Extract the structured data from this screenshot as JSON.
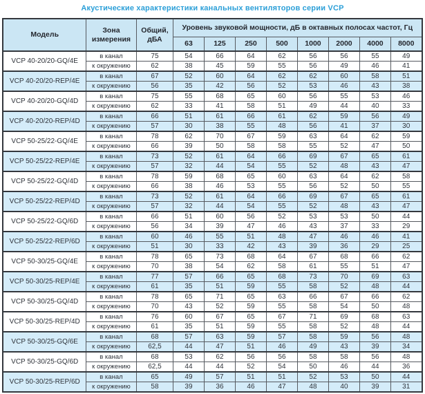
{
  "title": "Акустические характеристики канальных вентиляторов серии VCP",
  "table": {
    "headers": {
      "model": "Модель",
      "zone": "Зона измерения",
      "total": "Общий, дБА",
      "spl": "Уровень звуковой мощности, дБ в октавных полосах частот, Гц",
      "frequencies": [
        "63",
        "125",
        "250",
        "500",
        "1000",
        "2000",
        "4000",
        "8000"
      ]
    },
    "groups": [
      {
        "model": "VCP 40-20/20-GQ/4E",
        "shaded": false,
        "rows": [
          {
            "zone": "в канал",
            "total": "75",
            "levels": [
              "54",
              "66",
              "64",
              "62",
              "56",
              "56",
              "55",
              "49"
            ]
          },
          {
            "zone": "к окружению",
            "total": "62",
            "levels": [
              "38",
              "45",
              "59",
              "55",
              "56",
              "49",
              "46",
              "41"
            ]
          }
        ]
      },
      {
        "model": "VCP 40-20/20-REP/4E",
        "shaded": true,
        "rows": [
          {
            "zone": "в канал",
            "total": "67",
            "levels": [
              "52",
              "60",
              "64",
              "62",
              "62",
              "60",
              "58",
              "51"
            ]
          },
          {
            "zone": "к окружению",
            "total": "56",
            "levels": [
              "35",
              "42",
              "56",
              "52",
              "53",
              "46",
              "43",
              "38"
            ]
          }
        ]
      },
      {
        "model": "VCP 40-20/20-GQ/4D",
        "shaded": false,
        "rows": [
          {
            "zone": "в канал",
            "total": "75",
            "levels": [
              "55",
              "68",
              "65",
              "60",
              "56",
              "55",
              "53",
              "46"
            ]
          },
          {
            "zone": "к окружению",
            "total": "62",
            "levels": [
              "33",
              "41",
              "58",
              "51",
              "49",
              "44",
              "40",
              "33"
            ]
          }
        ]
      },
      {
        "model": "VCP 40-20/20-REP/4D",
        "shaded": true,
        "rows": [
          {
            "zone": "в канал",
            "total": "66",
            "levels": [
              "51",
              "61",
              "66",
              "61",
              "62",
              "59",
              "56",
              "49"
            ]
          },
          {
            "zone": "к окружению",
            "total": "57",
            "levels": [
              "30",
              "38",
              "55",
              "48",
              "56",
              "41",
              "37",
              "30"
            ]
          }
        ]
      },
      {
        "model": "VCP 50-25/22-GQ/4E",
        "shaded": false,
        "rows": [
          {
            "zone": "в канал",
            "total": "78",
            "levels": [
              "62",
              "70",
              "67",
              "59",
              "63",
              "64",
              "62",
              "59"
            ]
          },
          {
            "zone": "к окружению",
            "total": "66",
            "levels": [
              "39",
              "50",
              "58",
              "58",
              "55",
              "52",
              "47",
              "50"
            ]
          }
        ]
      },
      {
        "model": "VCP 50-25/22-REP/4E",
        "shaded": true,
        "rows": [
          {
            "zone": "в канал",
            "total": "73",
            "levels": [
              "52",
              "61",
              "64",
              "66",
              "69",
              "67",
              "65",
              "61"
            ]
          },
          {
            "zone": "к окружению",
            "total": "57",
            "levels": [
              "32",
              "44",
              "54",
              "55",
              "52",
              "48",
              "43",
              "47"
            ]
          }
        ]
      },
      {
        "model": "VCP 50-25/22-GQ/4D",
        "shaded": false,
        "rows": [
          {
            "zone": "в канал",
            "total": "78",
            "levels": [
              "59",
              "68",
              "65",
              "60",
              "63",
              "64",
              "62",
              "58"
            ]
          },
          {
            "zone": "к окружению",
            "total": "66",
            "levels": [
              "38",
              "46",
              "53",
              "55",
              "56",
              "52",
              "50",
              "55"
            ]
          }
        ]
      },
      {
        "model": "VCP 50-25/22-REP/4D",
        "shaded": true,
        "rows": [
          {
            "zone": "в канал",
            "total": "73",
            "levels": [
              "52",
              "61",
              "64",
              "66",
              "69",
              "67",
              "65",
              "61"
            ]
          },
          {
            "zone": "к окружению",
            "total": "57",
            "levels": [
              "32",
              "44",
              "54",
              "55",
              "52",
              "48",
              "43",
              "47"
            ]
          }
        ]
      },
      {
        "model": "VCP 50-25/22-GQ/6D",
        "shaded": false,
        "rows": [
          {
            "zone": "в канал",
            "total": "66",
            "levels": [
              "51",
              "60",
              "56",
              "52",
              "53",
              "53",
              "50",
              "44"
            ]
          },
          {
            "zone": "к окружению",
            "total": "56",
            "levels": [
              "34",
              "39",
              "47",
              "46",
              "43",
              "37",
              "33",
              "29"
            ]
          }
        ]
      },
      {
        "model": "VCP 50-25/22-REP/6D",
        "shaded": true,
        "rows": [
          {
            "zone": "в канал",
            "total": "60",
            "levels": [
              "46",
              "55",
              "51",
              "48",
              "47",
              "46",
              "46",
              "41"
            ]
          },
          {
            "zone": "к окружению",
            "total": "51",
            "levels": [
              "30",
              "33",
              "42",
              "43",
              "39",
              "36",
              "29",
              "25"
            ]
          }
        ]
      },
      {
        "model": "VCP 50-30/25-GQ/4E",
        "shaded": false,
        "rows": [
          {
            "zone": "в канал",
            "total": "78",
            "levels": [
              "65",
              "73",
              "68",
              "64",
              "67",
              "68",
              "66",
              "62"
            ]
          },
          {
            "zone": "к окружению",
            "total": "70",
            "levels": [
              "38",
              "54",
              "62",
              "58",
              "61",
              "55",
              "51",
              "47"
            ]
          }
        ]
      },
      {
        "model": "VCP 50-30/25-REP/4E",
        "shaded": true,
        "rows": [
          {
            "zone": "в канал",
            "total": "77",
            "levels": [
              "57",
              "66",
              "65",
              "68",
              "73",
              "70",
              "69",
              "63"
            ]
          },
          {
            "zone": "к окружению",
            "total": "61",
            "levels": [
              "35",
              "51",
              "59",
              "55",
              "58",
              "52",
              "48",
              "44"
            ]
          }
        ]
      },
      {
        "model": "VCP 50-30/25-GQ/4D",
        "shaded": false,
        "rows": [
          {
            "zone": "в канал",
            "total": "78",
            "levels": [
              "65",
              "71",
              "65",
              "63",
              "66",
              "67",
              "66",
              "62"
            ]
          },
          {
            "zone": "к окружению",
            "total": "70",
            "levels": [
              "43",
              "52",
              "59",
              "55",
              "58",
              "54",
              "50",
              "48"
            ]
          }
        ]
      },
      {
        "model": "VCP 50-30/25-REP/4D",
        "shaded": false,
        "rows": [
          {
            "zone": "в канал",
            "total": "76",
            "levels": [
              "60",
              "67",
              "65",
              "67",
              "71",
              "69",
              "68",
              "63"
            ]
          },
          {
            "zone": "к окружению",
            "total": "61",
            "levels": [
              "35",
              "51",
              "59",
              "55",
              "58",
              "52",
              "48",
              "44"
            ]
          }
        ]
      },
      {
        "model": "VCP 50-30/25-GQ/6E",
        "shaded": true,
        "rows": [
          {
            "zone": "в канал",
            "total": "68",
            "levels": [
              "57",
              "63",
              "59",
              "57",
              "58",
              "59",
              "56",
              "48"
            ]
          },
          {
            "zone": "к окружению",
            "total": "62,5",
            "levels": [
              "44",
              "47",
              "51",
              "46",
              "49",
              "43",
              "39",
              "34"
            ]
          }
        ]
      },
      {
        "model": "VCP 50-30/25-GQ/6D",
        "shaded": false,
        "rows": [
          {
            "zone": "в канал",
            "total": "68",
            "levels": [
              "53",
              "62",
              "56",
              "56",
              "58",
              "58",
              "56",
              "48"
            ]
          },
          {
            "zone": "к окружению",
            "total": "62,5",
            "levels": [
              "44",
              "44",
              "52",
              "54",
              "50",
              "46",
              "44",
              "36"
            ]
          }
        ]
      },
      {
        "model": "VCP 50-30/25-REP/6D",
        "shaded": true,
        "rows": [
          {
            "zone": "в канал",
            "total": "65",
            "levels": [
              "49",
              "57",
              "51",
              "51",
              "52",
              "53",
              "50",
              "44"
            ]
          },
          {
            "zone": "к окружению",
            "total": "58",
            "levels": [
              "39",
              "36",
              "46",
              "47",
              "48",
              "40",
              "39",
              "31"
            ]
          }
        ]
      }
    ]
  }
}
